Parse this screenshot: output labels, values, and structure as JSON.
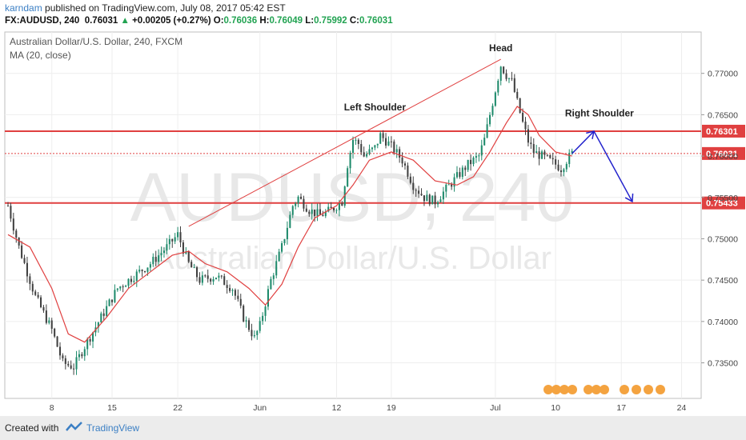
{
  "header": {
    "author": "karndam",
    "published_text": "published on TradingView.com, July 08, 2017 05:42 EST",
    "symbol": "FX:AUDUSD, 240",
    "last": "0.76031",
    "change_arrow": "▲",
    "change": "+0.00205 (+0.27%)",
    "open_label": "O:",
    "open": "0.76036",
    "high_label": "H:",
    "high": "0.76049",
    "low_label": "L:",
    "low": "0.75992",
    "close_label": "C:",
    "close": "0.76031"
  },
  "chart_data": {
    "type": "candlestick",
    "title": "Australian Dollar/U.S. Dollar, 240, FXCM",
    "indicator": "MA (20, close)",
    "watermark_symbol": "AUDUSD, 240",
    "watermark_name": "Australian Dollar/U.S. Dollar",
    "y_ticks": [
      "0.77000",
      "0.76500",
      "0.76000",
      "0.75500",
      "0.75000",
      "0.74500",
      "0.74000",
      "0.73500"
    ],
    "ylim": [
      0.7307,
      0.775
    ],
    "x_ticks": [
      "8",
      "15",
      "22",
      "Jun",
      "12",
      "19",
      "Jul",
      "10",
      "17",
      "24"
    ],
    "price_path": [
      [
        0,
        0.754
      ],
      [
        2,
        0.749
      ],
      [
        5,
        0.743
      ],
      [
        8,
        0.739
      ],
      [
        10,
        0.735
      ],
      [
        12,
        0.7345
      ],
      [
        14,
        0.737
      ],
      [
        17,
        0.7405
      ],
      [
        20,
        0.744
      ],
      [
        23,
        0.7455
      ],
      [
        26,
        0.747
      ],
      [
        29,
        0.749
      ],
      [
        31,
        0.7505
      ],
      [
        33,
        0.747
      ],
      [
        35,
        0.745
      ],
      [
        38,
        0.7455
      ],
      [
        41,
        0.744
      ],
      [
        43,
        0.7405
      ],
      [
        45,
        0.738
      ],
      [
        46,
        0.7395
      ],
      [
        48,
        0.745
      ],
      [
        50,
        0.749
      ],
      [
        52,
        0.754
      ],
      [
        53,
        0.755
      ],
      [
        55,
        0.7535
      ],
      [
        57,
        0.7528
      ],
      [
        59,
        0.7535
      ],
      [
        61,
        0.7545
      ],
      [
        62,
        0.759
      ],
      [
        63,
        0.762
      ],
      [
        64,
        0.7615
      ],
      [
        65,
        0.76
      ],
      [
        67,
        0.761
      ],
      [
        68,
        0.7625
      ],
      [
        70,
        0.7612
      ],
      [
        72,
        0.7595
      ],
      [
        74,
        0.7565
      ],
      [
        76,
        0.755
      ],
      [
        78,
        0.7545
      ],
      [
        80,
        0.756
      ],
      [
        82,
        0.7575
      ],
      [
        84,
        0.759
      ],
      [
        86,
        0.76
      ],
      [
        87,
        0.762
      ],
      [
        89,
        0.768
      ],
      [
        90,
        0.771
      ],
      [
        91,
        0.7698
      ],
      [
        92,
        0.769
      ],
      [
        93,
        0.7665
      ],
      [
        94,
        0.764
      ],
      [
        95,
        0.7618
      ],
      [
        96,
        0.7605
      ],
      [
        98,
        0.7598
      ],
      [
        100,
        0.759
      ],
      [
        101,
        0.7585
      ],
      [
        102,
        0.7595
      ],
      [
        103,
        0.7603
      ]
    ],
    "ma": [
      [
        0,
        0.7505
      ],
      [
        4,
        0.749
      ],
      [
        8,
        0.744
      ],
      [
        11,
        0.7385
      ],
      [
        14,
        0.7375
      ],
      [
        18,
        0.7405
      ],
      [
        22,
        0.744
      ],
      [
        26,
        0.746
      ],
      [
        30,
        0.748
      ],
      [
        33,
        0.7485
      ],
      [
        36,
        0.747
      ],
      [
        40,
        0.746
      ],
      [
        44,
        0.744
      ],
      [
        47,
        0.742
      ],
      [
        50,
        0.7445
      ],
      [
        53,
        0.749
      ],
      [
        56,
        0.7525
      ],
      [
        60,
        0.754
      ],
      [
        63,
        0.7565
      ],
      [
        66,
        0.7595
      ],
      [
        70,
        0.7605
      ],
      [
        74,
        0.7595
      ],
      [
        78,
        0.757
      ],
      [
        82,
        0.7565
      ],
      [
        85,
        0.7575
      ],
      [
        88,
        0.7605
      ],
      [
        91,
        0.764
      ],
      [
        93,
        0.766
      ],
      [
        95,
        0.765
      ],
      [
        97,
        0.7625
      ],
      [
        100,
        0.7605
      ],
      [
        103,
        0.76
      ]
    ],
    "levels": [
      {
        "value": 0.76301,
        "label": "0.76301",
        "color": "#e04040"
      },
      {
        "value": 0.76031,
        "label": "0.76031",
        "color": "#e04040",
        "style": "dotted"
      },
      {
        "value": 0.75433,
        "label": "0.75433",
        "color": "#e04040"
      }
    ],
    "trendline": {
      "from": [
        33,
        0.7515
      ],
      "to": [
        90,
        0.7717
      ],
      "color": "#e04040"
    },
    "forecast_path": [
      [
        103,
        0.7603
      ],
      [
        107,
        0.763
      ],
      [
        114,
        0.7545
      ]
    ],
    "forecast_color": "#2222cc",
    "annotations": [
      {
        "text": "Head",
        "at": [
          90,
          0.7727
        ]
      },
      {
        "text": "Left Shoulder",
        "at": [
          67,
          0.7655
        ]
      },
      {
        "text": "Right Shoulder",
        "at": [
          108,
          0.7648
        ]
      }
    ],
    "colors": {
      "up": "#1e8a6b",
      "down": "#404040",
      "ma": "#e04040",
      "grid": "#eeeeee"
    }
  },
  "footer": {
    "created_with": "Created with",
    "brand": "TradingView"
  }
}
